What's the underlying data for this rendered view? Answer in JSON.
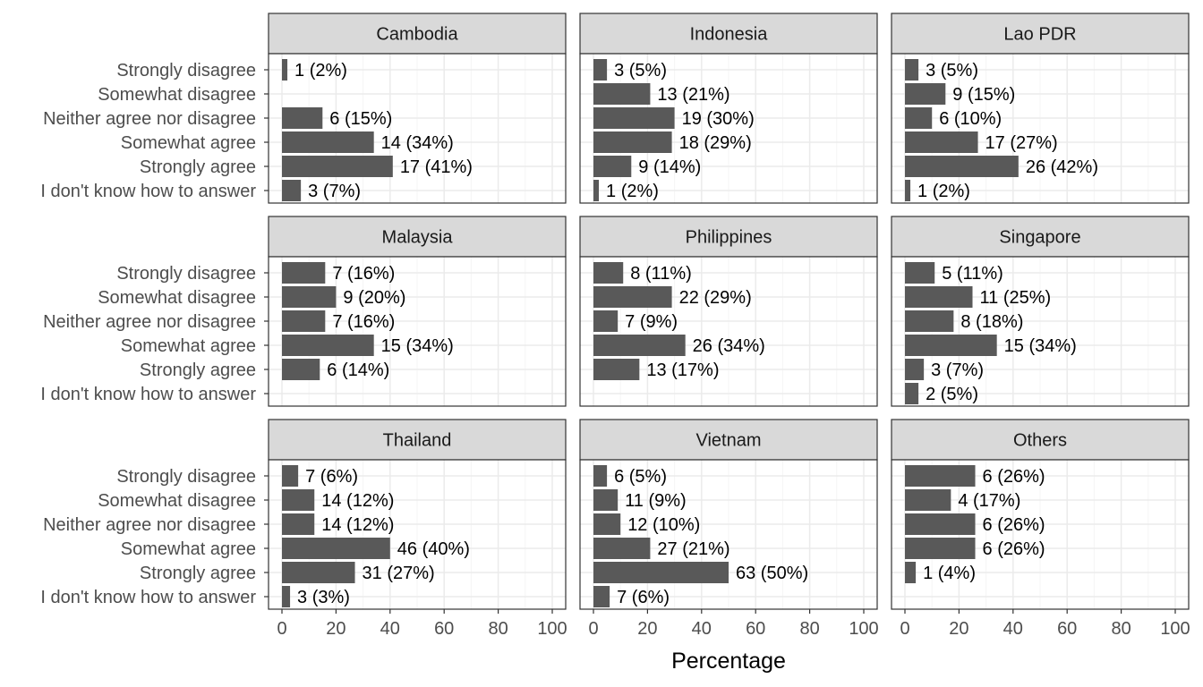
{
  "chart_data": {
    "type": "bar",
    "orientation": "horizontal",
    "facet_layout": "3x3",
    "xlabel": "Percentage",
    "ylabel": "",
    "xlim": [
      0,
      100
    ],
    "x_ticks": [
      0,
      20,
      40,
      60,
      80,
      100
    ],
    "grid": true,
    "legend": "none",
    "categories": [
      "Strongly disagree",
      "Somewhat disagree",
      "Neither agree nor disagree",
      "Somewhat agree",
      "Strongly agree",
      "I don't know how to answer"
    ],
    "colors": {
      "bar": "#595959",
      "strip": "#d9d9d9",
      "grid_major": "#ebebeb",
      "grid_minor": "#f5f5f5",
      "border": "#333333"
    },
    "facets": [
      {
        "name": "Cambodia",
        "values": [
          2,
          null,
          15,
          34,
          41,
          7
        ],
        "labels": [
          "1 (2%)",
          "",
          "6 (15%)",
          "14 (34%)",
          "17 (41%)",
          "3 (7%)"
        ]
      },
      {
        "name": "Indonesia",
        "values": [
          5,
          21,
          30,
          29,
          14,
          2
        ],
        "labels": [
          "3 (5%)",
          "13 (21%)",
          "19 (30%)",
          "18 (29%)",
          "9 (14%)",
          "1 (2%)"
        ]
      },
      {
        "name": "Lao PDR",
        "values": [
          5,
          15,
          10,
          27,
          42,
          2
        ],
        "labels": [
          "3 (5%)",
          "9 (15%)",
          "6 (10%)",
          "17 (27%)",
          "26 (42%)",
          "1 (2%)"
        ]
      },
      {
        "name": "Malaysia",
        "values": [
          16,
          20,
          16,
          34,
          14,
          null
        ],
        "labels": [
          "7 (16%)",
          "9 (20%)",
          "7 (16%)",
          "15 (34%)",
          "6 (14%)",
          ""
        ]
      },
      {
        "name": "Philippines",
        "values": [
          11,
          29,
          9,
          34,
          17,
          null
        ],
        "labels": [
          "8 (11%)",
          "22 (29%)",
          "7 (9%)",
          "26 (34%)",
          "13 (17%)",
          ""
        ]
      },
      {
        "name": "Singapore",
        "values": [
          11,
          25,
          18,
          34,
          7,
          5
        ],
        "labels": [
          "5 (11%)",
          "11 (25%)",
          "8 (18%)",
          "15 (34%)",
          "3 (7%)",
          "2 (5%)"
        ]
      },
      {
        "name": "Thailand",
        "values": [
          6,
          12,
          12,
          40,
          27,
          3
        ],
        "labels": [
          "7 (6%)",
          "14 (12%)",
          "14 (12%)",
          "46 (40%)",
          "31 (27%)",
          "3 (3%)"
        ]
      },
      {
        "name": "Vietnam",
        "values": [
          5,
          9,
          10,
          21,
          50,
          6
        ],
        "labels": [
          "6 (5%)",
          "11 (9%)",
          "12 (10%)",
          "27 (21%)",
          "63 (50%)",
          "7 (6%)"
        ]
      },
      {
        "name": "Others",
        "values": [
          26,
          17,
          26,
          26,
          4,
          null
        ],
        "labels": [
          "6 (26%)",
          "4 (17%)",
          "6 (26%)",
          "6 (26%)",
          "1 (4%)",
          ""
        ]
      }
    ]
  }
}
